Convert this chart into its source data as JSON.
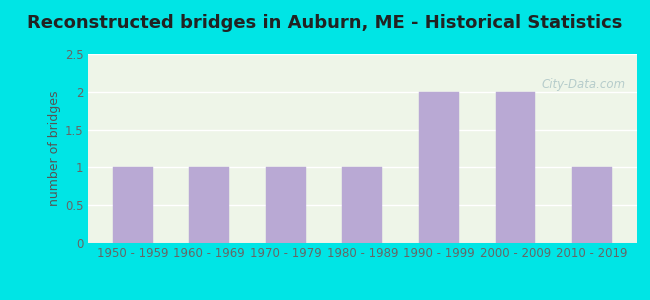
{
  "title": "Reconstructed bridges in Auburn, ME - Historical Statistics",
  "categories": [
    "1950 - 1959",
    "1960 - 1969",
    "1970 - 1979",
    "1980 - 1989",
    "1990 - 1999",
    "2000 - 2009",
    "2010 - 2019"
  ],
  "values": [
    1,
    1,
    1,
    1,
    2,
    2,
    1
  ],
  "bar_color": "#b9a9d4",
  "bar_edge_color": "#b9a9d4",
  "ylabel": "number of bridges",
  "ylim": [
    0,
    2.5
  ],
  "yticks": [
    0,
    0.5,
    1,
    1.5,
    2,
    2.5
  ],
  "background_outer": "#00e5e5",
  "background_plot": "#eef5e8",
  "grid_color": "#ffffff",
  "title_fontsize": 13,
  "ylabel_fontsize": 9,
  "tick_fontsize": 8.5,
  "watermark_text": "City-Data.com",
  "watermark_color": "#b0c8c8"
}
